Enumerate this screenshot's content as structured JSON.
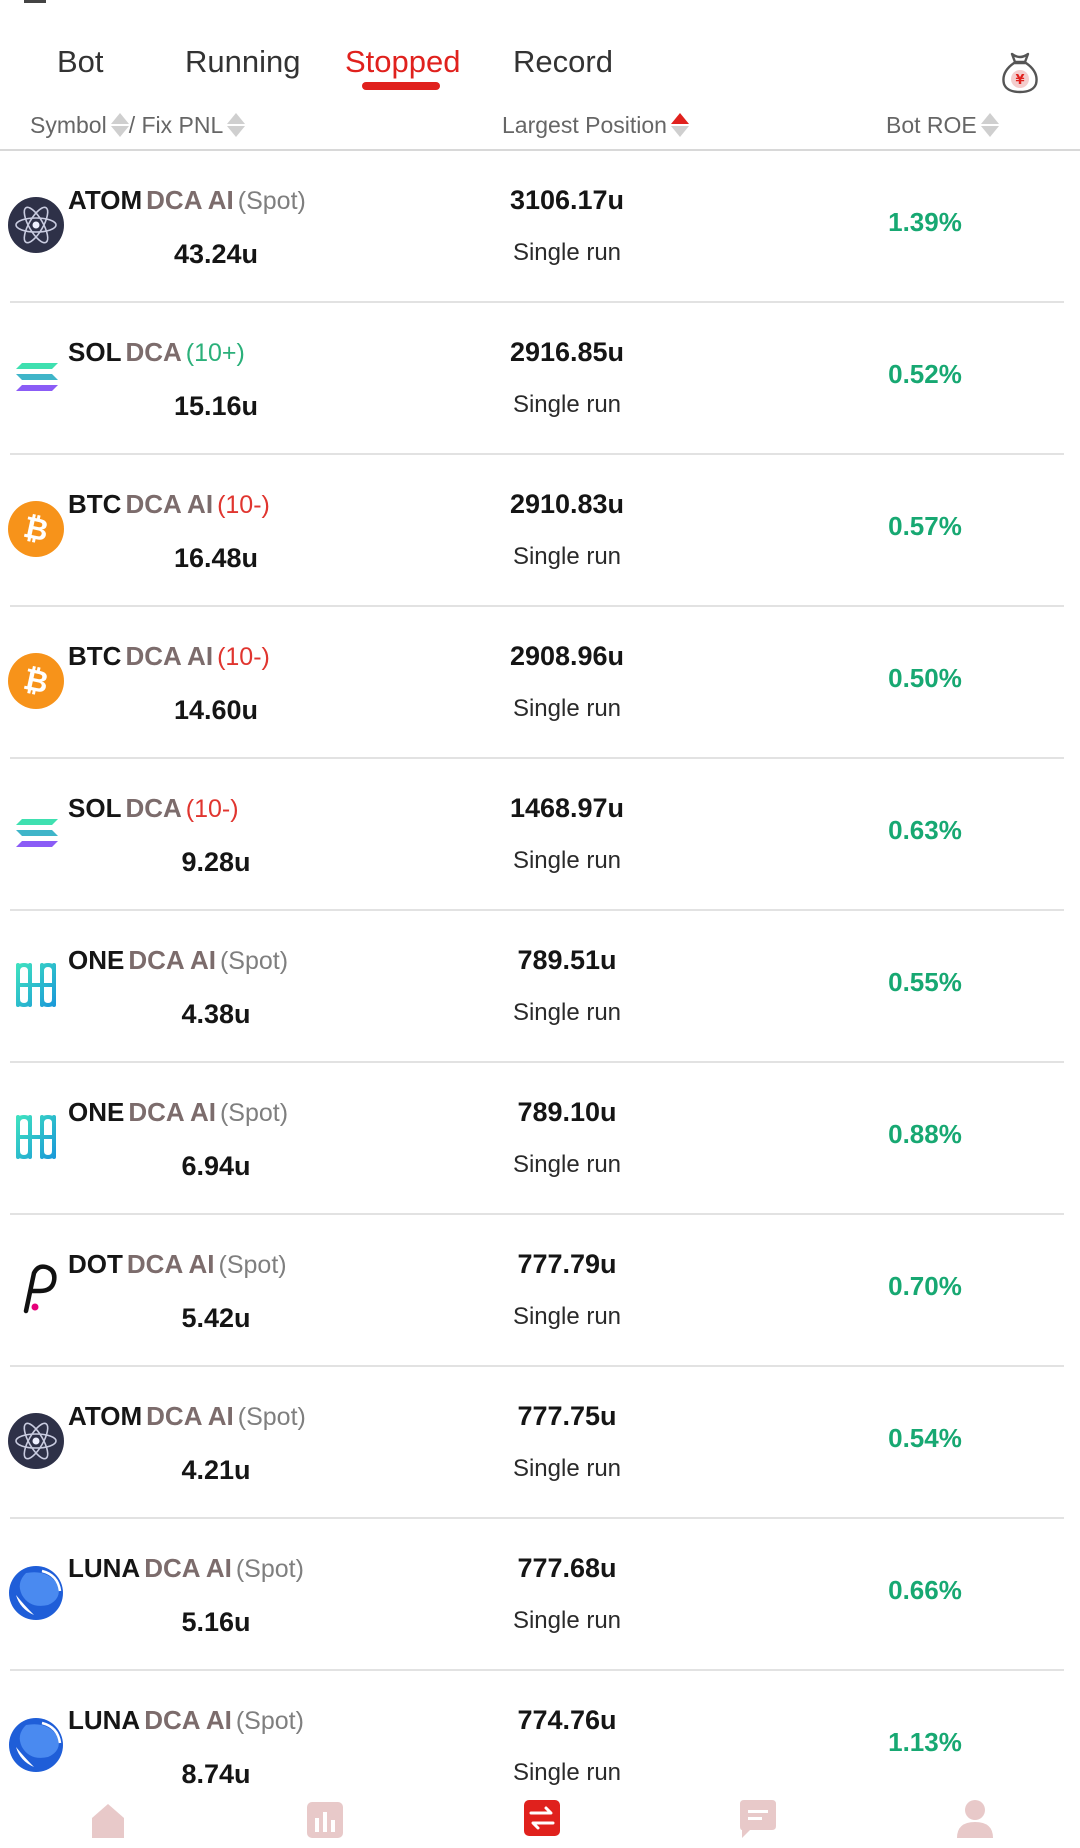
{
  "tabs": [
    "Bot",
    "Running",
    "Stopped",
    "Record"
  ],
  "active_tab": "Stopped",
  "columns": {
    "symbol": "Symbol",
    "separator": "/ Fix PNL",
    "largest_position": "Largest Position",
    "bot_roe": "Bot ROE"
  },
  "colors": {
    "accent": "#e0211d",
    "positive": "#17a872",
    "tag_plus": "#2bb07a",
    "tag_minus": "#e0352f"
  },
  "bots": [
    {
      "symbol": "ATOM",
      "strategy": "DCA AI",
      "tag": "(Spot)",
      "tag_kind": "spot",
      "coin_icon": "atom-icon",
      "pnl": "43.24u",
      "largest_position": "3106.17u",
      "run_type": "Single run",
      "roe": "1.39%"
    },
    {
      "symbol": "SOL",
      "strategy": "DCA",
      "tag": "(10+)",
      "tag_kind": "plus",
      "coin_icon": "sol-icon",
      "pnl": "15.16u",
      "largest_position": "2916.85u",
      "run_type": "Single run",
      "roe": "0.52%"
    },
    {
      "symbol": "BTC",
      "strategy": "DCA AI",
      "tag": "(10-)",
      "tag_kind": "minus",
      "coin_icon": "btc-icon",
      "pnl": "16.48u",
      "largest_position": "2910.83u",
      "run_type": "Single run",
      "roe": "0.57%"
    },
    {
      "symbol": "BTC",
      "strategy": "DCA AI",
      "tag": "(10-)",
      "tag_kind": "minus",
      "coin_icon": "btc-icon",
      "pnl": "14.60u",
      "largest_position": "2908.96u",
      "run_type": "Single run",
      "roe": "0.50%"
    },
    {
      "symbol": "SOL",
      "strategy": "DCA",
      "tag": "(10-)",
      "tag_kind": "minus",
      "coin_icon": "sol-icon",
      "pnl": "9.28u",
      "largest_position": "1468.97u",
      "run_type": "Single run",
      "roe": "0.63%"
    },
    {
      "symbol": "ONE",
      "strategy": "DCA AI",
      "tag": "(Spot)",
      "tag_kind": "spot",
      "coin_icon": "one-icon",
      "pnl": "4.38u",
      "largest_position": "789.51u",
      "run_type": "Single run",
      "roe": "0.55%"
    },
    {
      "symbol": "ONE",
      "strategy": "DCA AI",
      "tag": "(Spot)",
      "tag_kind": "spot",
      "coin_icon": "one-icon",
      "pnl": "6.94u",
      "largest_position": "789.10u",
      "run_type": "Single run",
      "roe": "0.88%"
    },
    {
      "symbol": "DOT",
      "strategy": "DCA AI",
      "tag": "(Spot)",
      "tag_kind": "spot",
      "coin_icon": "dot-icon",
      "pnl": "5.42u",
      "largest_position": "777.79u",
      "run_type": "Single run",
      "roe": "0.70%"
    },
    {
      "symbol": "ATOM",
      "strategy": "DCA AI",
      "tag": "(Spot)",
      "tag_kind": "spot",
      "coin_icon": "atom-icon",
      "pnl": "4.21u",
      "largest_position": "777.75u",
      "run_type": "Single run",
      "roe": "0.54%"
    },
    {
      "symbol": "LUNA",
      "strategy": "DCA AI",
      "tag": "(Spot)",
      "tag_kind": "spot",
      "coin_icon": "luna-icon",
      "pnl": "5.16u",
      "largest_position": "777.68u",
      "run_type": "Single run",
      "roe": "0.66%"
    },
    {
      "symbol": "LUNA",
      "strategy": "DCA AI",
      "tag": "(Spot)",
      "tag_kind": "spot",
      "coin_icon": "luna-icon",
      "pnl": "8.74u",
      "largest_position": "774.76u",
      "run_type": "Single run",
      "roe": "1.13%"
    }
  ],
  "bottom_nav": [
    "home-icon",
    "chart-icon",
    "trade-icon",
    "message-icon",
    "profile-icon"
  ]
}
